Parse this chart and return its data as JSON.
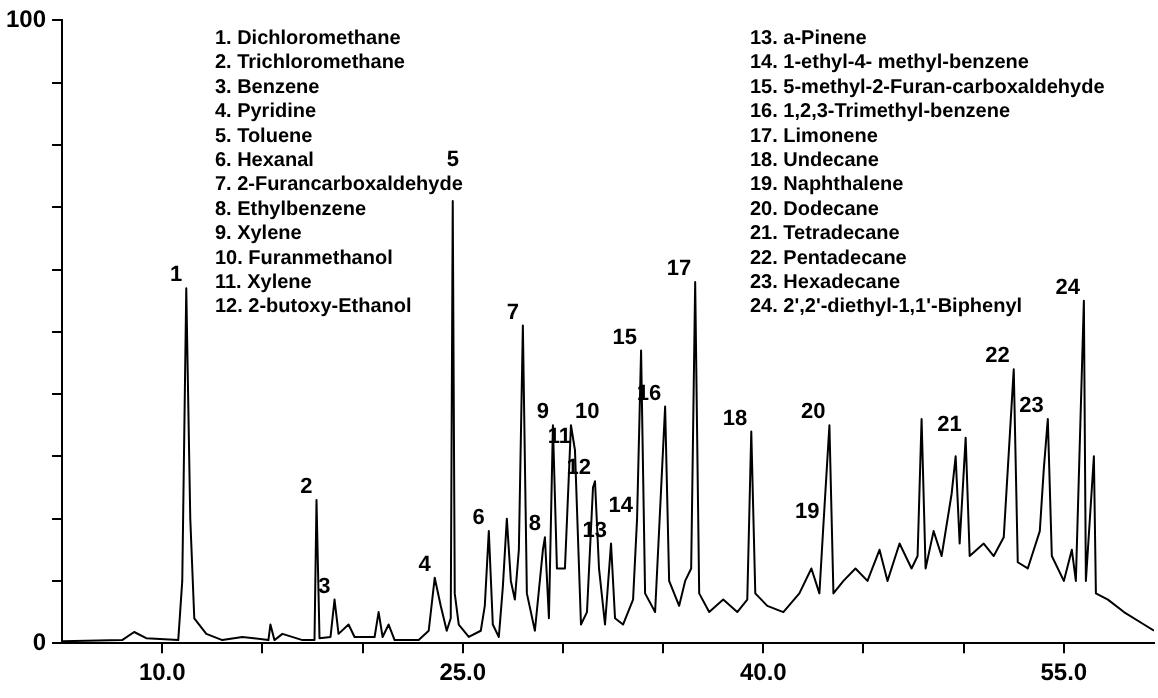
{
  "chart_data": {
    "type": "line",
    "x": [
      5.0,
      8.0,
      8.6,
      9.2,
      10.8,
      11.0,
      11.2,
      11.4,
      11.6,
      12.2,
      13.0,
      14.0,
      15.3,
      15.4,
      15.6,
      16.0,
      17.0,
      17.6,
      17.7,
      17.85,
      18.4,
      18.6,
      18.8,
      19.3,
      19.6,
      20.6,
      20.8,
      21.0,
      21.3,
      21.6,
      22.8,
      23.3,
      23.6,
      23.9,
      24.2,
      24.4,
      24.5,
      24.6,
      24.8,
      25.3,
      25.9,
      26.1,
      26.3,
      26.5,
      26.8,
      27.0,
      27.2,
      27.4,
      27.6,
      27.8,
      28.0,
      28.2,
      28.6,
      29.0,
      29.1,
      29.3,
      29.5,
      29.7,
      30.1,
      30.4,
      30.6,
      30.9,
      31.2,
      31.5,
      31.6,
      31.8,
      32.1,
      32.4,
      32.6,
      33.0,
      33.5,
      33.7,
      33.9,
      34.1,
      34.6,
      35.1,
      35.3,
      35.8,
      36.1,
      36.4,
      36.6,
      36.8,
      37.3,
      38.0,
      38.7,
      39.2,
      39.4,
      39.6,
      40.2,
      41.0,
      41.8,
      42.4,
      42.8,
      43.0,
      43.3,
      43.5,
      44.0,
      44.6,
      45.2,
      45.8,
      46.2,
      46.8,
      47.4,
      47.7,
      47.9,
      48.1,
      48.5,
      48.9,
      49.4,
      49.6,
      49.8,
      50.1,
      50.3,
      51.0,
      51.5,
      52.0,
      52.5,
      52.7,
      53.2,
      53.8,
      54.0,
      54.2,
      54.4,
      55.0,
      55.4,
      55.6,
      56.0,
      56.1,
      56.5,
      56.6,
      57.2,
      58.0,
      59.0,
      59.5
    ],
    "series": [
      {
        "color": "#000000",
        "values": [
          0.3,
          0.5,
          1.8,
          0.8,
          0.5,
          10,
          57,
          20,
          4,
          1.5,
          0.5,
          1,
          0.5,
          3,
          0.5,
          1.5,
          0.5,
          0.5,
          23,
          0.8,
          1,
          7,
          1.5,
          3,
          1,
          1,
          5,
          1,
          3,
          0.5,
          0.5,
          2,
          10.5,
          6,
          2,
          4,
          71,
          8,
          3,
          1,
          2,
          6,
          18,
          3,
          1,
          9,
          20,
          10,
          7,
          15,
          51,
          8,
          2,
          15,
          17,
          4,
          35,
          12,
          12,
          35,
          31,
          3,
          5,
          25,
          26,
          12,
          3,
          16,
          4,
          3,
          7,
          20,
          47,
          8,
          5,
          38,
          10,
          6,
          10,
          12,
          58,
          8,
          5,
          7,
          5,
          7,
          34,
          8,
          6,
          5,
          8,
          12,
          8,
          19,
          35,
          8,
          10,
          12,
          10,
          15,
          10,
          16,
          12,
          14,
          36,
          12,
          18,
          14,
          24,
          30,
          16,
          33,
          14,
          16,
          14,
          17,
          44,
          13,
          12,
          18,
          28,
          36,
          14,
          10,
          15,
          10,
          55,
          10,
          30,
          8,
          7,
          5,
          3,
          2
        ]
      }
    ],
    "xlim": [
      5,
      59.5
    ],
    "xticks": [
      {
        "value": 10,
        "label": "10.0"
      },
      {
        "value": 15,
        "label": null
      },
      {
        "value": 20,
        "label": null
      },
      {
        "value": 25,
        "label": "25.0"
      },
      {
        "value": 30,
        "label": null
      },
      {
        "value": 35,
        "label": null
      },
      {
        "value": 40,
        "label": "40.0"
      },
      {
        "value": 45,
        "label": null
      },
      {
        "value": 50,
        "label": null
      },
      {
        "value": 55,
        "label": "55.0"
      }
    ],
    "ylim": [
      0,
      100
    ],
    "yticks": [
      0,
      {
        "value": 10,
        "label": null
      },
      {
        "value": 20,
        "label": null
      },
      {
        "value": 30,
        "label": null
      },
      {
        "value": 40,
        "label": null
      },
      {
        "value": 50,
        "label": null
      },
      {
        "value": 60,
        "label": null
      },
      {
        "value": 70,
        "label": null
      },
      {
        "value": 80,
        "label": null
      },
      {
        "value": 90,
        "label": null
      },
      100
    ],
    "grid": false,
    "legend": false,
    "marker": "none",
    "line_style": "solid",
    "annotations": [
      "1. Dichloromethane",
      "2. Trichloromethane",
      "3. Benzene",
      "4. Pyridine",
      "5. Toluene",
      "6. Hexanal",
      "7. 2-Furancarboxaldehyde",
      "8. Ethylbenzene",
      "9. Xylene",
      "10. Furanmethanol",
      "11. Xylene",
      "12. 2-butoxy-Ethanol",
      "13. a-Pinene",
      "14. 1-ethyl-4- methyl-benzene",
      "15. 5-methyl-2-Furan-carboxaldehyde",
      "16. 1,2,3-Trimethyl-benzene",
      "17. Limonene",
      "18. Undecane",
      "19. Naphthalene",
      "20. Dodecane",
      "21. Tetradecane",
      "22. Pentadecane",
      "23. Hexadecane",
      "24. 2',2'-diethyl-1,1'-Biphenyl",
      {
        "text": "1",
        "x": 11.2,
        "y": 57
      },
      {
        "text": "2",
        "x": 17.7,
        "y": 23
      },
      {
        "text": "3",
        "x": 18.6,
        "y": 7
      },
      {
        "text": "4",
        "x": 23.6,
        "y": 10.5
      },
      {
        "text": "5",
        "x": 24.5,
        "y": 71
      },
      {
        "text": "6",
        "x": 26.3,
        "y": 18
      },
      {
        "text": "7",
        "x": 28.0,
        "y": 51
      },
      {
        "text": "8",
        "x": 29.1,
        "y": 17
      },
      {
        "text": "9",
        "x": 29.5,
        "y": 35
      },
      {
        "text": "10",
        "x": 30.4,
        "y": 35
      },
      {
        "text": "11",
        "x": 30.6,
        "y": 31
      },
      {
        "text": "12",
        "x": 31.6,
        "y": 26
      },
      {
        "text": "13",
        "x": 32.4,
        "y": 16
      },
      {
        "text": "14",
        "x": 33.7,
        "y": 20
      },
      {
        "text": "15",
        "x": 33.9,
        "y": 47
      },
      {
        "text": "16",
        "x": 35.1,
        "y": 38
      },
      {
        "text": "17",
        "x": 36.6,
        "y": 58
      },
      {
        "text": "18",
        "x": 39.4,
        "y": 34
      },
      {
        "text": "19",
        "x": 43.0,
        "y": 19
      },
      {
        "text": "20",
        "x": 43.3,
        "y": 35
      },
      {
        "text": "21",
        "x": 50.1,
        "y": 33
      },
      {
        "text": "22",
        "x": 52.5,
        "y": 44
      },
      {
        "text": "23",
        "x": 54.2,
        "y": 36
      },
      {
        "text": "24",
        "x": 56.0,
        "y": 55
      }
    ]
  }
}
